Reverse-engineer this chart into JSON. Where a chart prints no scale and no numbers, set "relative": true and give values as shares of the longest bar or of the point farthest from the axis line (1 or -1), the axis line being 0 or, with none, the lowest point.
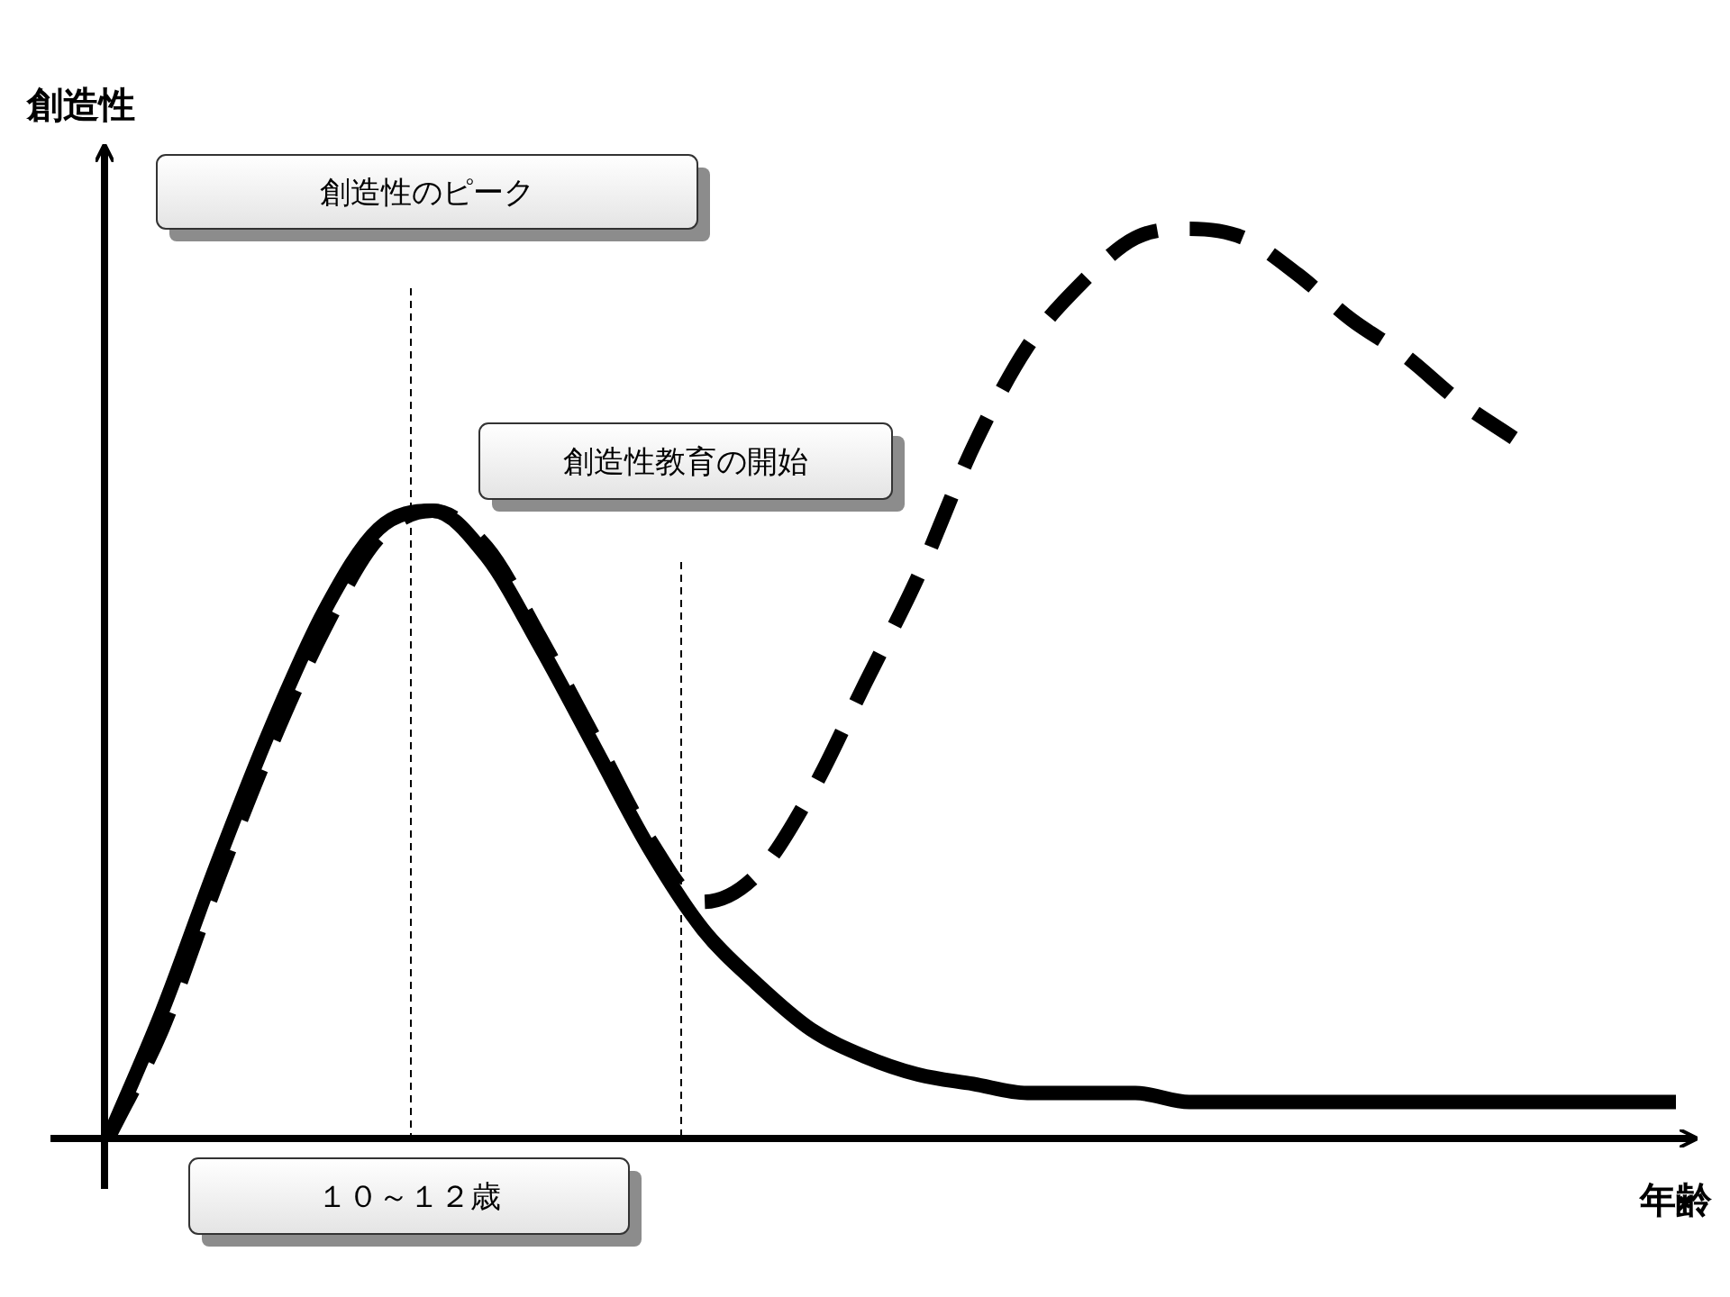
{
  "chart_data": {
    "type": "line",
    "relative": true,
    "xlabel": "年齢",
    "ylabel": "創造性",
    "categories": [
      null,
      null,
      null,
      null,
      null,
      null,
      null,
      null,
      null,
      null,
      null,
      null,
      null,
      null,
      null,
      null,
      null,
      null,
      null,
      null,
      null,
      null,
      null,
      null,
      null,
      null,
      null,
      null,
      null,
      null
    ],
    "series": [
      {
        "color": "#000000",
        "line_style": "solid",
        "values": [
          0,
          0.14,
          0.3,
          0.45,
          0.58,
          0.67,
          0.69,
          0.64,
          0.54,
          0.43,
          0.32,
          0.23,
          0.17,
          0.12,
          0.09,
          0.07,
          0.06,
          0.05,
          0.05,
          0.05,
          0.04,
          0.04,
          0.04,
          0.04,
          0.04,
          0.04,
          0.04,
          0.04,
          0.04,
          0.04
        ]
      },
      {
        "color": "#000000",
        "line_style": "dashed",
        "values": [
          0,
          0.12,
          0.28,
          0.43,
          0.56,
          0.66,
          0.69,
          0.65,
          0.55,
          0.44,
          0.33,
          0.26,
          0.29,
          0.38,
          0.5,
          0.62,
          0.76,
          0.87,
          0.94,
          0.99,
          1,
          0.99,
          0.95,
          0.9,
          0.86,
          0.81,
          0.77,
          null,
          null,
          null
        ]
      }
    ],
    "annotations": [
      "創造性のピーク",
      "創造性教育の開始",
      "１０～１２歳"
    ]
  }
}
